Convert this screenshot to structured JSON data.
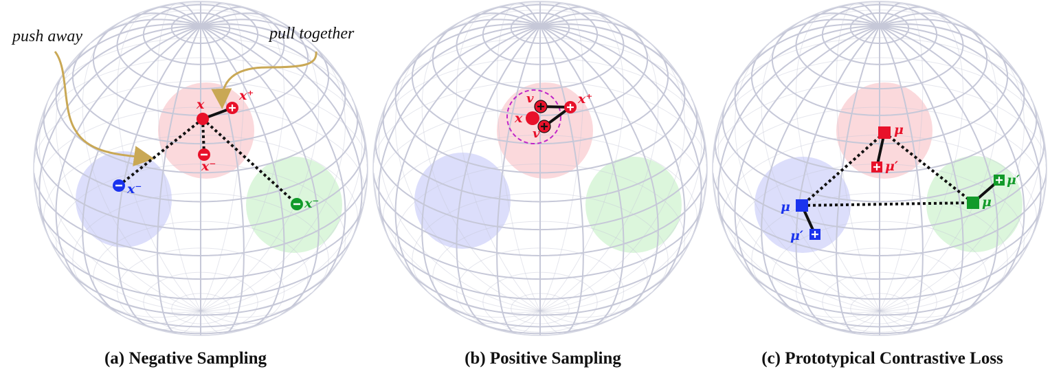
{
  "annotations": {
    "push_away": "push away",
    "pull_together": "pull together"
  },
  "captions": {
    "a": "(a) Negative Sampling",
    "b": "(b) Positive Sampling",
    "c": "(c) Prototypical Contrastive Loss"
  },
  "labels": {
    "x": "x",
    "x_plus": "x⁺",
    "x_minus": "x⁻",
    "v": "v",
    "mu": "μ",
    "mu_prime": "μ′"
  },
  "colors": {
    "red": "#e8112a",
    "blue": "#1a33ee",
    "green": "#129a2a",
    "red_region": "#fbd9dc",
    "blue_region": "#dcdefb",
    "green_region": "#dcf6dc",
    "arrow": "#c9a855",
    "grid": "#c6c8d8",
    "dashed_circle": "#c026c8"
  },
  "icons": {
    "positive": "plus-circle-icon",
    "negative": "minus-circle-icon",
    "anchor": "filled-circle-icon",
    "prototype": "filled-square-icon",
    "prototype_positive": "plus-square-icon"
  }
}
